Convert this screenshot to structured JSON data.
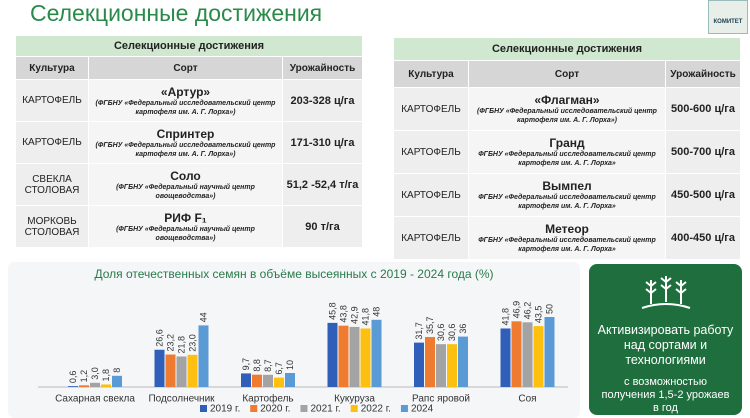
{
  "header": {
    "title": "Селекционные достижения",
    "logo": "КОМИТЕТ"
  },
  "left_table": {
    "title": "Селекционные достижения",
    "columns": [
      "Культура",
      "Сорт",
      "Урожайность"
    ],
    "rows": [
      {
        "crop": "КАРТОФЕЛЬ",
        "variety": "«Артур»",
        "institution": "(ФГБНУ «Федеральный исследовательский центр картофеля им. А. Г. Лорха»)",
        "yield": "203-328 ц/га"
      },
      {
        "crop": "КАРТОФЕЛЬ",
        "variety": "Спринтер",
        "institution": "(ФГБНУ «Федеральный исследовательский центр картофеля им. А. Г. Лорха»)",
        "yield": "171-310 ц/га"
      },
      {
        "crop": "СВЕКЛА СТОЛОВАЯ",
        "variety": "Соло",
        "institution": "(ФГБНУ «Федеральный научный центр овощеводства»)",
        "yield": "51,2 -52,4 т/га"
      },
      {
        "crop": "МОРКОВЬ СТОЛОВАЯ",
        "variety": "РИФ F₁",
        "institution": "(ФГБНУ «Федеральный научный центр овощеводства»)",
        "yield": "90 т/га"
      }
    ]
  },
  "right_table": {
    "title": "Селекционные достижения",
    "columns": [
      "Культура",
      "Сорт",
      "Урожайность"
    ],
    "rows": [
      {
        "crop": "КАРТОФЕЛЬ",
        "variety": "«Флагман»",
        "institution": "(ФГБНУ «Федеральный исследовательский центр картофеля им. А. Г. Лорха»)",
        "yield": "500-600 ц/га"
      },
      {
        "crop": "КАРТОФЕЛЬ",
        "variety": "Гранд",
        "institution": "ФГБНУ «Федеральный исследовательский центр картофеля им. А. Г. Лорха»",
        "yield": "500-700 ц/га"
      },
      {
        "crop": "КАРТОФЕЛЬ",
        "variety": "Вымпел",
        "institution": "ФГБНУ «Федеральный исследовательский центр картофеля им. А. Г. Лорха»",
        "yield": "450-500 ц/га"
      },
      {
        "crop": "КАРТОФЕЛЬ",
        "variety": "Метеор",
        "institution": "ФГБНУ «Федеральный исследовательский центр картофеля им. А. Г. Лорха»",
        "yield": "400-450 ц/га"
      }
    ]
  },
  "chart_data": {
    "type": "bar",
    "title": "Доля отечественных семян в объёме высеянных с 2019 - 2024 года (%)",
    "categories": [
      "Сахарная свекла",
      "Подсолнечник",
      "Картофель",
      "Кукуруза",
      "Рапс яровой",
      "Соя"
    ],
    "series": [
      {
        "name": "2019 г.",
        "color": "#2f5fb8",
        "values": [
          0.6,
          26.6,
          9.7,
          45.8,
          31.7,
          41.8
        ],
        "value_labels": [
          "0,6",
          "26,6",
          "9,7",
          "45,8",
          "31,7",
          "41,8"
        ]
      },
      {
        "name": "2020 г.",
        "color": "#ee7b30",
        "values": [
          1.2,
          23.2,
          8.8,
          43.8,
          35.7,
          46.9
        ],
        "value_labels": [
          "1,2",
          "23,2",
          "8,8",
          "43,8",
          "35,7",
          "46,9"
        ]
      },
      {
        "name": "2021 г.",
        "color": "#a3a3a3",
        "values": [
          3.0,
          21.8,
          8.7,
          42.9,
          30.6,
          46.2
        ],
        "value_labels": [
          "3,0",
          "21,8",
          "8,7",
          "42,9",
          "30,6",
          "46,2"
        ]
      },
      {
        "name": "2022 г.",
        "color": "#fdc010",
        "values": [
          1.8,
          23.0,
          6.7,
          41.8,
          30.6,
          43.5
        ],
        "value_labels": [
          "1,8",
          "23,0",
          "6,7",
          "41,8",
          "30,6",
          "43,5"
        ]
      },
      {
        "name": "2024",
        "color": "#5b9bd5",
        "values": [
          8,
          44,
          10,
          48,
          36,
          50
        ]
      }
    ]
  },
  "callout": {
    "main": "Активизировать работу над сортами и технологиями",
    "sub": "с возможностью получения 1,5-2 урожаев в год"
  }
}
